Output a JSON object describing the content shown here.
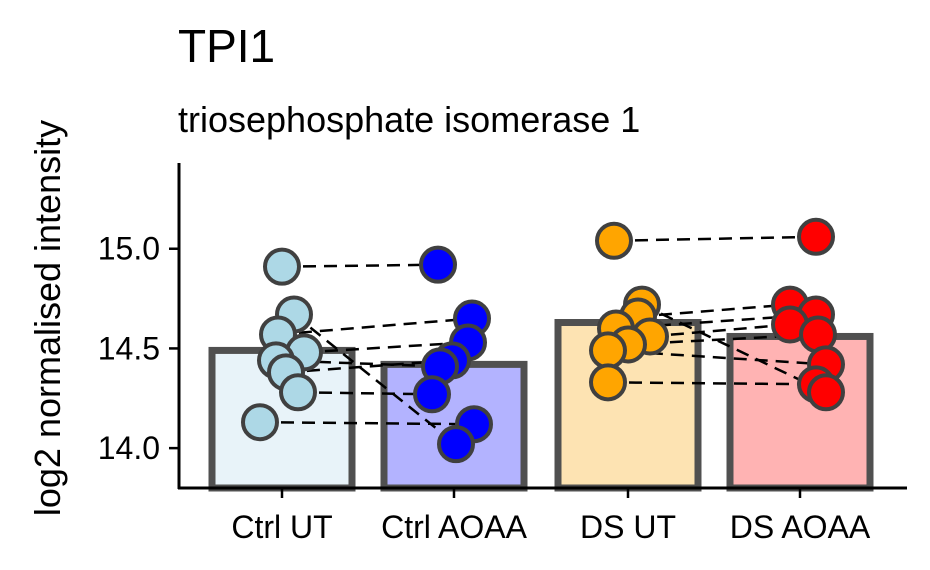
{
  "chart_data": {
    "type": "bar",
    "title": "TPI1",
    "subtitle": "triosephosphate isomerase 1",
    "xlabel": "",
    "ylabel": "log2 normalised intensity",
    "ylim": [
      13.8,
      15.43
    ],
    "yticks": [
      "14.0",
      "14.5",
      "15.0"
    ],
    "ytick_values": [
      14.0,
      14.5,
      15.0
    ],
    "categories": [
      "Ctrl UT",
      "Ctrl AOAA",
      "DS UT",
      "DS AOAA"
    ],
    "values": [
      14.49,
      14.42,
      14.63,
      14.56
    ],
    "bar_colors": [
      "#e8f3f9",
      "#b3b3ff",
      "#fde3b2",
      "#ffb3b3"
    ],
    "point_colors": [
      "#add8e6",
      "#0000ff",
      "#ffa500",
      "#ff0000"
    ],
    "points": [
      [
        14.91,
        14.67,
        14.57,
        14.48,
        14.44,
        14.38,
        14.28,
        14.13
      ],
      [
        14.92,
        14.65,
        14.53,
        14.44,
        14.41,
        14.27,
        14.12,
        14.02
      ],
      [
        15.04,
        14.72,
        14.66,
        14.6,
        14.56,
        14.52,
        14.49,
        14.33
      ],
      [
        15.06,
        14.72,
        14.67,
        14.62,
        14.57,
        14.42,
        14.32,
        14.28
      ]
    ],
    "pairs": [
      {
        "groups": [
          0,
          1
        ],
        "values": [
          [
            14.91,
            14.92
          ],
          [
            14.57,
            14.65
          ],
          [
            14.48,
            14.53
          ],
          [
            14.38,
            14.44
          ],
          [
            14.44,
            14.41
          ],
          [
            14.28,
            14.27
          ],
          [
            14.13,
            14.12
          ],
          [
            14.67,
            14.02
          ]
        ]
      },
      {
        "groups": [
          2,
          3
        ],
        "values": [
          [
            15.04,
            15.06
          ],
          [
            14.66,
            14.72
          ],
          [
            14.6,
            14.67
          ],
          [
            14.56,
            14.62
          ],
          [
            14.52,
            14.57
          ],
          [
            14.49,
            14.42
          ],
          [
            14.33,
            14.32
          ],
          [
            14.72,
            14.28
          ]
        ]
      }
    ],
    "grid": false,
    "legend": "none"
  }
}
